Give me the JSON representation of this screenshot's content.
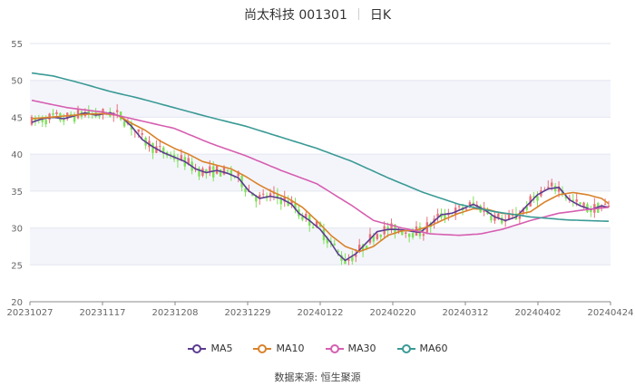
{
  "header": {
    "stock": "尚太科技 001301",
    "period": "日K"
  },
  "source": "数据来源:  恒生聚源",
  "chart_data": {
    "type": "candlestick",
    "title": "尚太科技 001301",
    "ylim": [
      20,
      55
    ],
    "yticks": [
      20,
      25,
      30,
      35,
      40,
      45,
      50,
      55
    ],
    "x_labels": [
      "20231027",
      "20231117",
      "20231208",
      "20231229",
      "20240122",
      "20240220",
      "20240312",
      "20240402",
      "20240424"
    ],
    "up_color": "#e8707a",
    "down_color": "#7ee05a",
    "series": [
      {
        "name": "MA5",
        "color": "#5b3c8f",
        "keyframes": [
          [
            0,
            44.3
          ],
          [
            3,
            44.8
          ],
          [
            6,
            45.0
          ],
          [
            9,
            44.8
          ],
          [
            12,
            45.2
          ],
          [
            15,
            45.6
          ],
          [
            18,
            45.3
          ],
          [
            22,
            45.6
          ],
          [
            25,
            45.1
          ],
          [
            28,
            43.8
          ],
          [
            31,
            42.0
          ],
          [
            34,
            41.0
          ],
          [
            37,
            40.2
          ],
          [
            40,
            39.6
          ],
          [
            43,
            39.0
          ],
          [
            46,
            38.0
          ],
          [
            49,
            37.5
          ],
          [
            52,
            37.8
          ],
          [
            55,
            37.4
          ],
          [
            58,
            36.8
          ],
          [
            61,
            35.0
          ],
          [
            64,
            34.0
          ],
          [
            67,
            34.3
          ],
          [
            70,
            34.0
          ],
          [
            73,
            33.2
          ],
          [
            75,
            32.0
          ],
          [
            78,
            31.0
          ],
          [
            81,
            29.8
          ],
          [
            84,
            28.0
          ],
          [
            86,
            26.5
          ],
          [
            88,
            25.6
          ],
          [
            91,
            26.5
          ],
          [
            94,
            28.0
          ],
          [
            97,
            29.5
          ],
          [
            100,
            29.8
          ],
          [
            103,
            29.8
          ],
          [
            106,
            29.6
          ],
          [
            109,
            29.4
          ],
          [
            112,
            30.5
          ],
          [
            115,
            31.8
          ],
          [
            118,
            32.0
          ],
          [
            121,
            32.6
          ],
          [
            124,
            33.2
          ],
          [
            127,
            32.5
          ],
          [
            130,
            31.5
          ],
          [
            133,
            31.0
          ],
          [
            136,
            31.5
          ],
          [
            139,
            33.0
          ],
          [
            142,
            34.5
          ],
          [
            145,
            35.3
          ],
          [
            148,
            35.5
          ],
          [
            151,
            33.8
          ],
          [
            154,
            33.0
          ],
          [
            157,
            32.5
          ],
          [
            160,
            33.0
          ],
          [
            162,
            32.8
          ]
        ]
      },
      {
        "name": "MA10",
        "color": "#d9822b",
        "keyframes": [
          [
            0,
            44.8
          ],
          [
            5,
            45.0
          ],
          [
            10,
            45.2
          ],
          [
            15,
            45.4
          ],
          [
            20,
            45.5
          ],
          [
            24,
            45.3
          ],
          [
            28,
            44.2
          ],
          [
            32,
            43.2
          ],
          [
            36,
            41.8
          ],
          [
            40,
            40.8
          ],
          [
            44,
            40.0
          ],
          [
            48,
            39.0
          ],
          [
            52,
            38.5
          ],
          [
            56,
            38.0
          ],
          [
            60,
            37.0
          ],
          [
            64,
            35.8
          ],
          [
            68,
            34.8
          ],
          [
            72,
            34.0
          ],
          [
            76,
            32.8
          ],
          [
            80,
            31.0
          ],
          [
            84,
            29.0
          ],
          [
            88,
            27.5
          ],
          [
            92,
            26.8
          ],
          [
            96,
            27.5
          ],
          [
            100,
            29.0
          ],
          [
            104,
            29.6
          ],
          [
            108,
            29.7
          ],
          [
            112,
            30.3
          ],
          [
            116,
            31.2
          ],
          [
            120,
            32.0
          ],
          [
            124,
            32.6
          ],
          [
            128,
            32.5
          ],
          [
            132,
            32.0
          ],
          [
            136,
            31.8
          ],
          [
            140,
            32.2
          ],
          [
            144,
            33.5
          ],
          [
            148,
            34.5
          ],
          [
            152,
            34.8
          ],
          [
            156,
            34.5
          ],
          [
            160,
            34.0
          ],
          [
            162,
            33.3
          ]
        ]
      },
      {
        "name": "MA30",
        "color": "#d65eb0",
        "keyframes": [
          [
            0,
            47.3
          ],
          [
            10,
            46.3
          ],
          [
            20,
            45.7
          ],
          [
            30,
            44.6
          ],
          [
            40,
            43.5
          ],
          [
            50,
            41.5
          ],
          [
            60,
            39.8
          ],
          [
            70,
            37.8
          ],
          [
            80,
            36.0
          ],
          [
            90,
            33.0
          ],
          [
            96,
            31.0
          ],
          [
            104,
            30.0
          ],
          [
            112,
            29.2
          ],
          [
            120,
            29.0
          ],
          [
            126,
            29.2
          ],
          [
            132,
            29.8
          ],
          [
            140,
            31.0
          ],
          [
            148,
            32.0
          ],
          [
            156,
            32.5
          ],
          [
            162,
            32.8
          ]
        ]
      },
      {
        "name": "MA60",
        "color": "#3a9a95",
        "keyframes": [
          [
            0,
            51.0
          ],
          [
            6,
            50.6
          ],
          [
            14,
            49.6
          ],
          [
            22,
            48.5
          ],
          [
            30,
            47.6
          ],
          [
            40,
            46.3
          ],
          [
            50,
            45.0
          ],
          [
            60,
            43.8
          ],
          [
            70,
            42.3
          ],
          [
            80,
            40.8
          ],
          [
            90,
            39.0
          ],
          [
            100,
            36.8
          ],
          [
            110,
            34.8
          ],
          [
            120,
            33.2
          ],
          [
            130,
            32.2
          ],
          [
            140,
            31.5
          ],
          [
            150,
            31.1
          ],
          [
            162,
            30.9
          ]
        ]
      }
    ]
  }
}
